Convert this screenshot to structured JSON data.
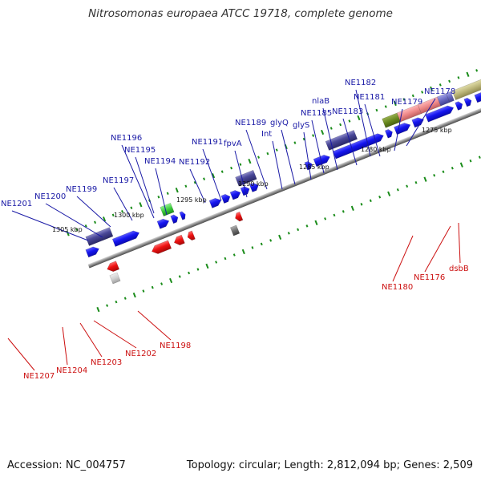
{
  "title": "Nitrosomonas europaea ATCC 19718, complete genome",
  "footer": {
    "accession": "Accession: NC_004757",
    "summary": "Topology: circular; Length: 2,812,094 bp; Genes: 2,509"
  },
  "colors": {
    "forward_gene": "#1515f0",
    "reverse_gene": "#ee1111",
    "tick": "#1a8c1a",
    "backbone": "#8a8a8a",
    "forward_label": "#1a1aa6",
    "reverse_label": "#cc1111"
  },
  "scale_labels": [
    "1305 kbp",
    "1300 kbp",
    "1295 kbp",
    "1290 kbp",
    "1285 kbp",
    "1280 kbp",
    "1275 kbp"
  ],
  "forward_labels": [
    "NE1201",
    "NE1200",
    "NE1199",
    "NE1197",
    "NE1196",
    "NE1195",
    "NE1194",
    "NE1192",
    "NE1191",
    "fpvA",
    "NE1189",
    "Int",
    "glyQ",
    "glyS",
    "NE1185",
    "nlaB",
    "NE1183",
    "NE1182",
    "NE1181",
    "NE1179",
    "NE1178"
  ],
  "reverse_labels": [
    "NE1207",
    "NE1204",
    "NE1203",
    "NE1202",
    "NE1198",
    "NE1180",
    "NE1176",
    "dsbB"
  ]
}
